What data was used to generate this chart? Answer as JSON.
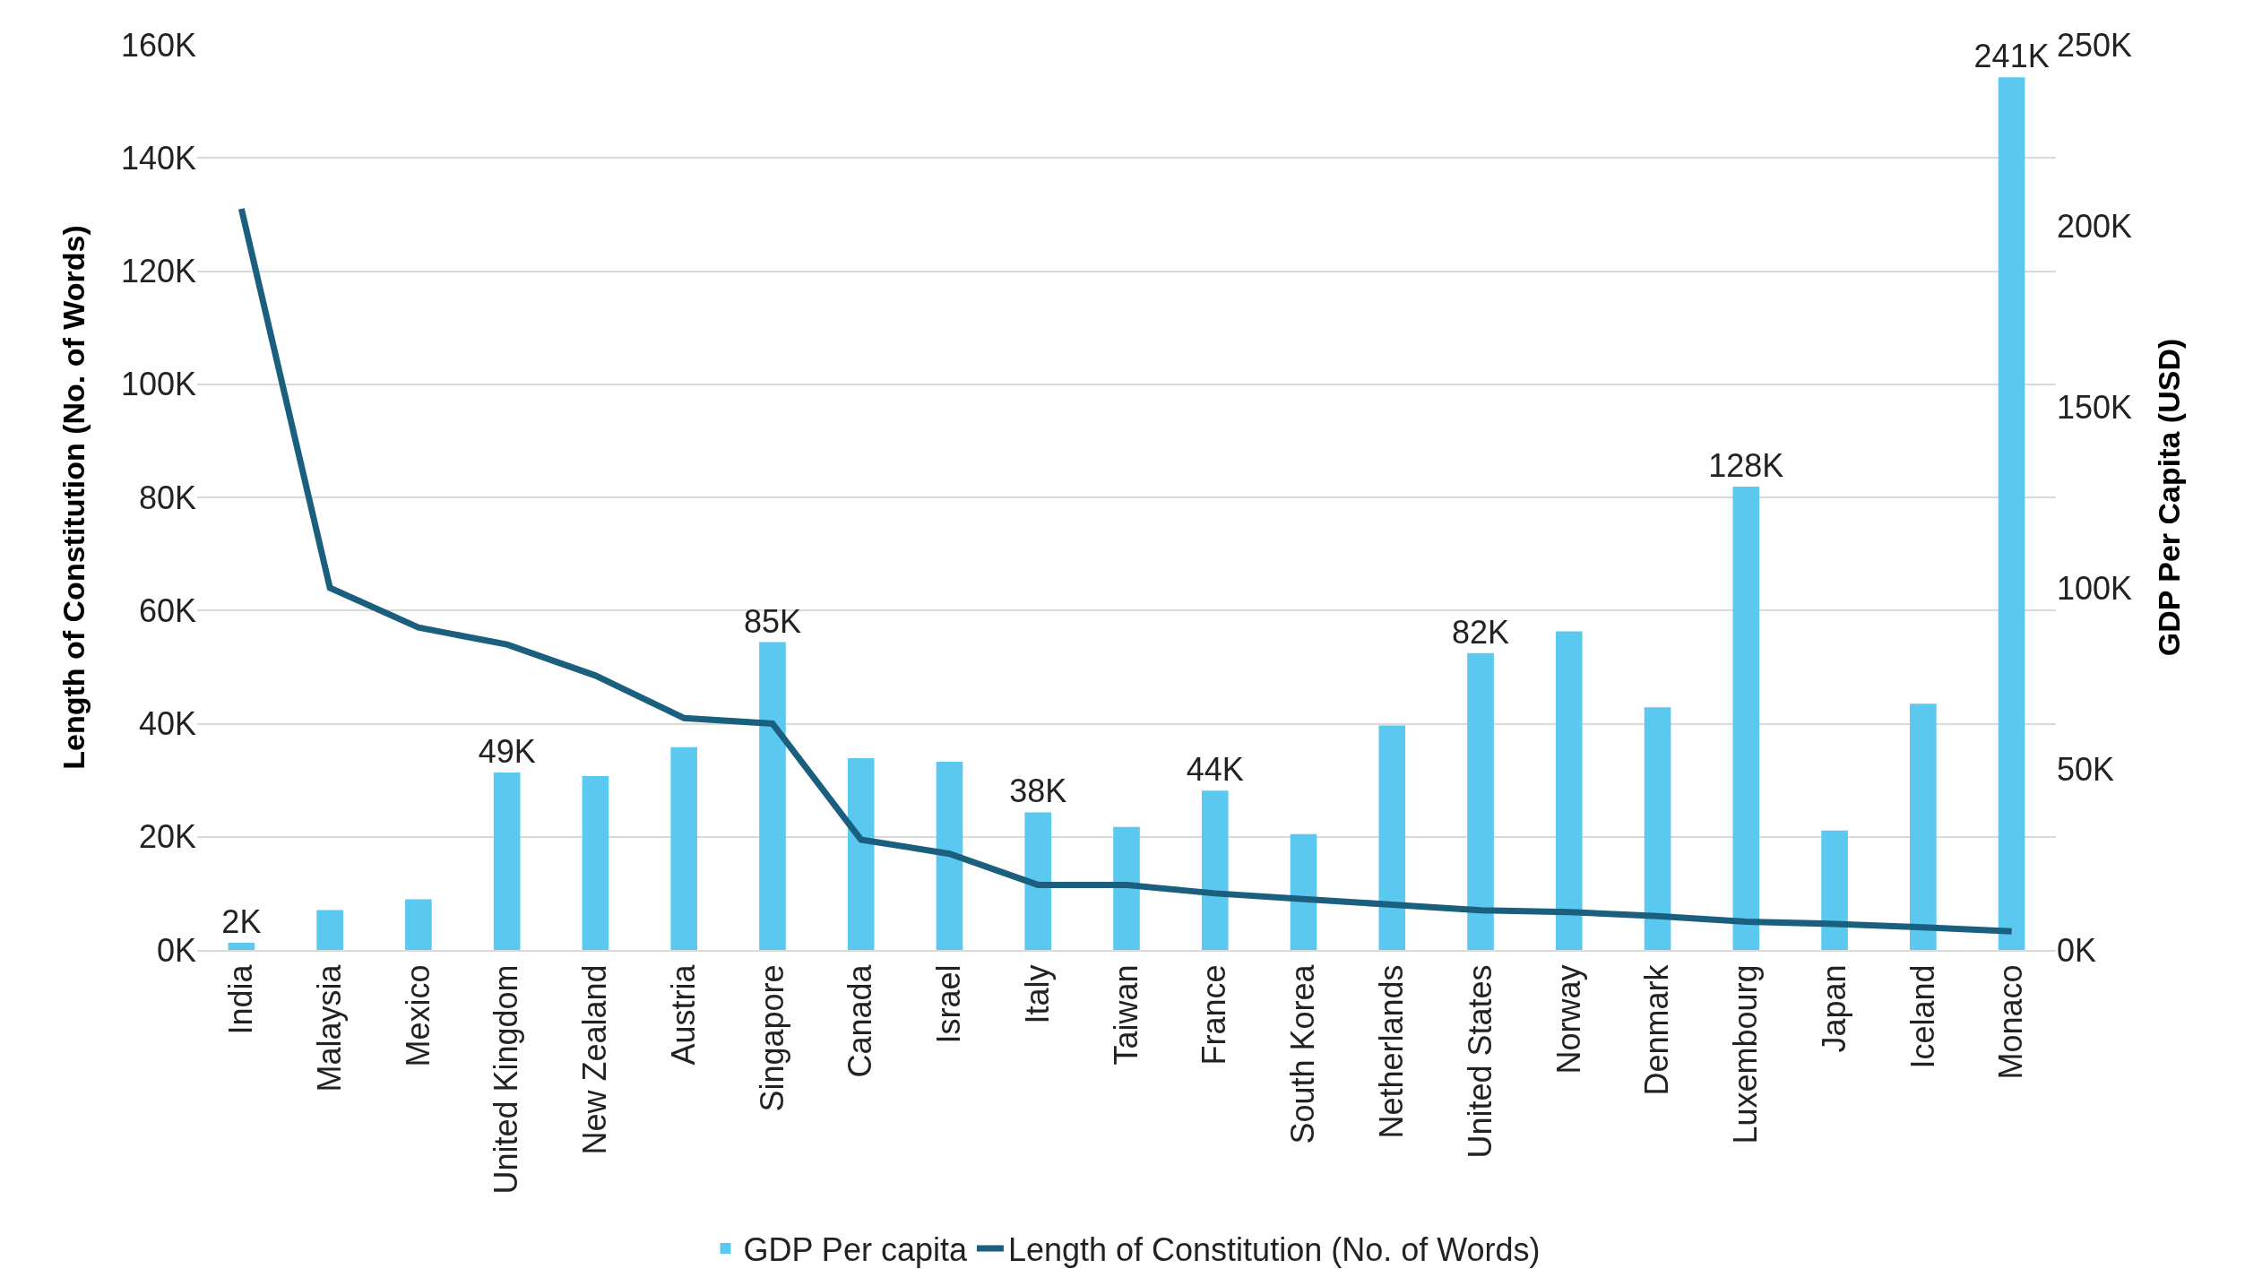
{
  "chart_data": {
    "type": "bar",
    "ylabel": "Length of Constitution (No. of Words)",
    "y2label": "GDP Per Capita (USD)",
    "categories": [
      "India",
      "Malaysia",
      "Mexico",
      "United Kingdom",
      "New Zealand",
      "Austria",
      "Singapore",
      "Canada",
      "Israel",
      "Italy",
      "Taiwan",
      "France",
      "South Korea",
      "Netherlands",
      "United States",
      "Norway",
      "Denmark",
      "Luxembourg",
      "Japan",
      "Iceland",
      "Monaco"
    ],
    "series": [
      {
        "name": "GDP Per capita",
        "axis": "y2",
        "color": "#5bc8f0",
        "values": [
          2,
          11,
          14,
          49,
          48,
          56,
          85,
          53,
          52,
          38,
          34,
          44,
          32,
          62,
          82,
          88,
          67,
          128,
          33,
          68,
          241
        ],
        "value_labels": [
          "2K",
          null,
          null,
          "49K",
          null,
          null,
          "85K",
          null,
          null,
          "38K",
          null,
          "44K",
          null,
          null,
          "82K",
          null,
          null,
          "128K",
          null,
          null,
          "241K"
        ]
      },
      {
        "name": "Length of Constitution (No. of Words)",
        "type": "line",
        "axis": "y",
        "color": "#1b5f7e",
        "values": [
          131,
          64,
          57,
          54,
          48.5,
          41,
          40,
          19.5,
          17,
          11.5,
          11.5,
          10,
          9,
          8,
          7,
          6.7,
          6,
          5,
          4.6,
          4,
          3.3
        ]
      }
    ],
    "ylim": [
      0,
      160
    ],
    "yticks": [
      {
        "value": 0,
        "label": "0K"
      },
      {
        "value": 20,
        "label": "20K"
      },
      {
        "value": 40,
        "label": "40K"
      },
      {
        "value": 60,
        "label": "60K"
      },
      {
        "value": 80,
        "label": "80K"
      },
      {
        "value": 100,
        "label": "100K"
      },
      {
        "value": 120,
        "label": "120K"
      },
      {
        "value": 140,
        "label": "140K"
      },
      {
        "value": 160,
        "label": "160K"
      }
    ],
    "y2lim": [
      0,
      250
    ],
    "y2ticks": [
      {
        "value": 0,
        "label": "0K"
      },
      {
        "value": 50,
        "label": "50K"
      },
      {
        "value": 100,
        "label": "100K"
      },
      {
        "value": 150,
        "label": "150K"
      },
      {
        "value": 200,
        "label": "200K"
      },
      {
        "value": 250,
        "label": "250K"
      }
    ],
    "grid": "y",
    "legend": "bottom",
    "marker": "none",
    "line_style": "solid"
  }
}
